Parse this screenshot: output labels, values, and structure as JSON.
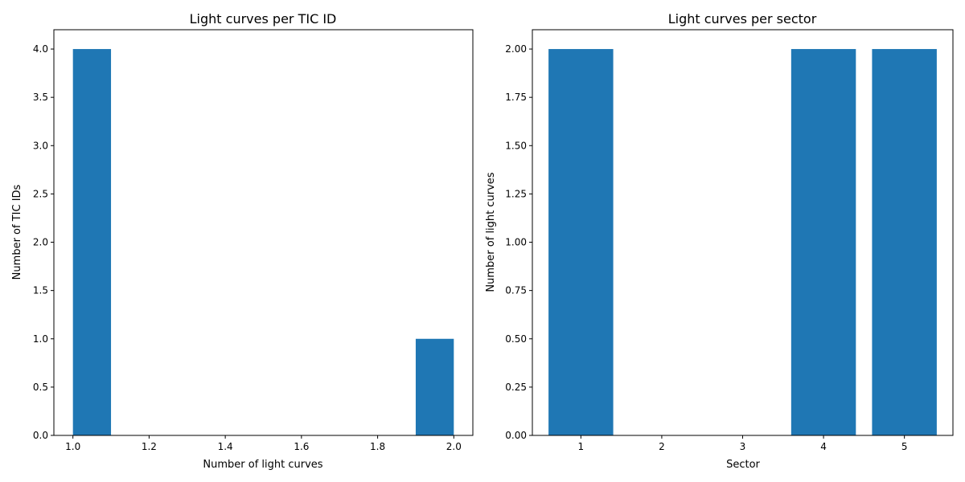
{
  "chart_data": [
    {
      "type": "bar",
      "title": "Light curves per TIC ID",
      "xlabel": "Number of light curves",
      "ylabel": "Number of TIC IDs",
      "xlim": [
        0.95,
        2.05
      ],
      "ylim": [
        0,
        4.2
      ],
      "xticks": [
        "1.0",
        "1.2",
        "1.4",
        "1.6",
        "1.8",
        "2.0"
      ],
      "yticks": [
        "0.0",
        "0.5",
        "1.0",
        "1.5",
        "2.0",
        "2.5",
        "3.0",
        "3.5",
        "4.0"
      ],
      "bins": [
        {
          "x0": 1.0,
          "x1": 1.1,
          "value": 4
        },
        {
          "x0": 1.1,
          "x1": 1.2,
          "value": 0
        },
        {
          "x0": 1.2,
          "x1": 1.3,
          "value": 0
        },
        {
          "x0": 1.3,
          "x1": 1.4,
          "value": 0
        },
        {
          "x0": 1.4,
          "x1": 1.5,
          "value": 0
        },
        {
          "x0": 1.5,
          "x1": 1.6,
          "value": 0
        },
        {
          "x0": 1.6,
          "x1": 1.7,
          "value": 0
        },
        {
          "x0": 1.7,
          "x1": 1.8,
          "value": 0
        },
        {
          "x0": 1.8,
          "x1": 1.9,
          "value": 0
        },
        {
          "x0": 1.9,
          "x1": 2.0,
          "value": 1
        }
      ],
      "color": "#1f77b4"
    },
    {
      "type": "bar",
      "title": "Light curves per sector",
      "xlabel": "Sector",
      "ylabel": "Number of light curves",
      "categories": [
        "1",
        "2",
        "3",
        "4",
        "5"
      ],
      "values": [
        2,
        0,
        0,
        2,
        2
      ],
      "xlim": [
        0.4,
        5.6
      ],
      "ylim": [
        0,
        2.1
      ],
      "yticks": [
        "0.00",
        "0.25",
        "0.50",
        "0.75",
        "1.00",
        "1.25",
        "1.50",
        "1.75",
        "2.00"
      ],
      "color": "#1f77b4"
    }
  ]
}
